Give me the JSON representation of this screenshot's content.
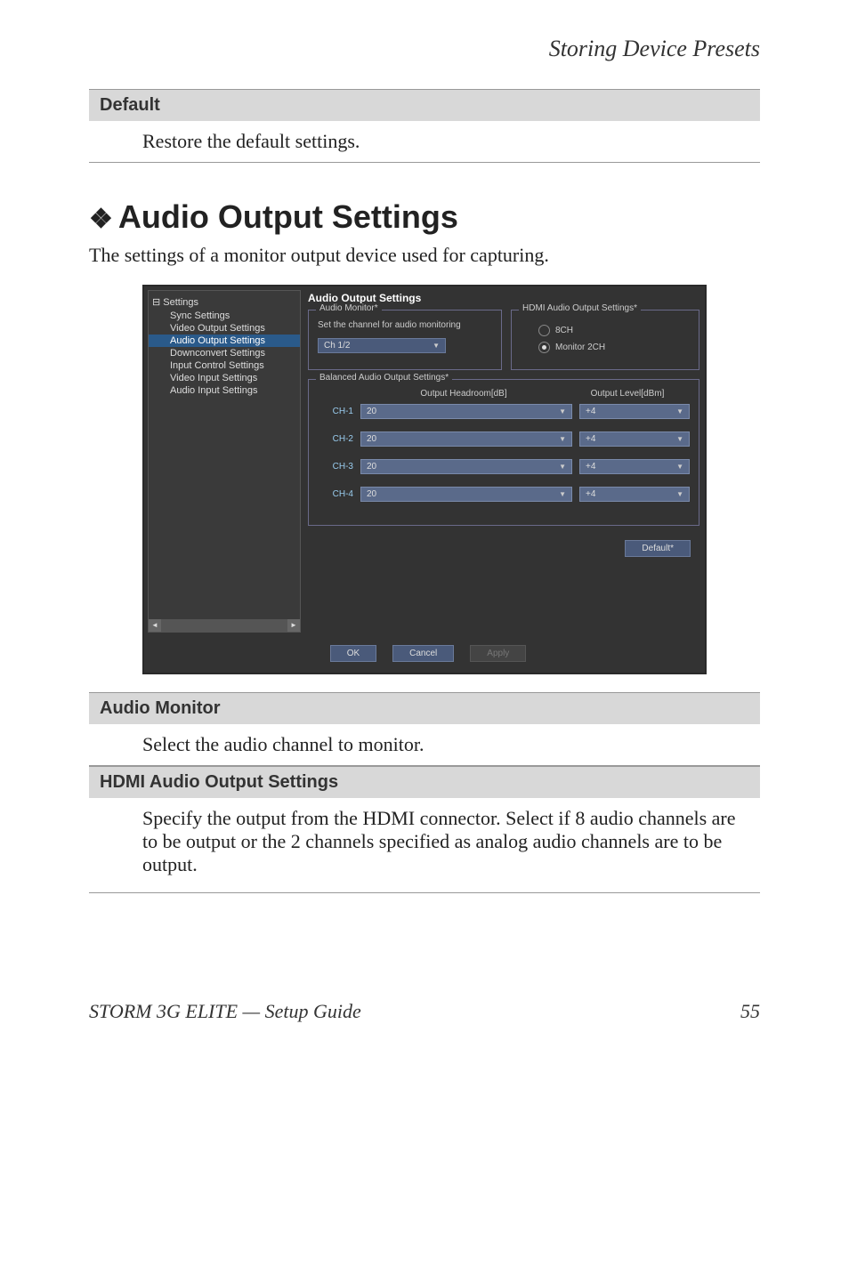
{
  "header": {
    "title": "Storing Device Presets"
  },
  "default_section": {
    "label": "Default",
    "text": "Restore the default settings."
  },
  "main": {
    "heading": "Audio Output Settings",
    "intro": "The settings of a monitor output device used for capturing."
  },
  "dialog": {
    "tree": {
      "root": "⊟ Settings",
      "items": [
        "Sync Settings",
        "Video Output Settings",
        "Audio Output Settings",
        "Downconvert Settings",
        "Input Control Settings",
        "Video Input Settings",
        "Audio Input Settings"
      ],
      "selected_index": 2
    },
    "panel_title": "Audio Output Settings",
    "audio_monitor": {
      "legend": "Audio Monitor*",
      "text": "Set the channel for audio monitoring",
      "value": "Ch 1/2"
    },
    "hdmi": {
      "legend": "HDMI Audio Output Settings*",
      "options": [
        {
          "label": "8CH",
          "selected": false
        },
        {
          "label": "Monitor 2CH",
          "selected": true
        }
      ]
    },
    "balanced": {
      "legend": "Balanced Audio Output Settings*",
      "header_headroom": "Output Headroom[dB]",
      "header_level": "Output Level[dBm]",
      "channels": [
        {
          "label": "CH-1",
          "headroom": "20",
          "level": "+4"
        },
        {
          "label": "CH-2",
          "headroom": "20",
          "level": "+4"
        },
        {
          "label": "CH-3",
          "headroom": "20",
          "level": "+4"
        },
        {
          "label": "CH-4",
          "headroom": "20",
          "level": "+4"
        }
      ]
    },
    "default_btn": "Default*",
    "buttons": {
      "ok": "OK",
      "cancel": "Cancel",
      "apply": "Apply"
    }
  },
  "sections": {
    "audio_monitor": {
      "label": "Audio Monitor",
      "text": "Select the audio channel to monitor."
    },
    "hdmi": {
      "label": "HDMI Audio Output Settings",
      "text": "Specify the output from the HDMI connector. Select if 8 audio channels are to be output or the 2 channels specified as analog audio channels are to be output."
    }
  },
  "footer": {
    "left": "STORM 3G ELITE  —  Setup Guide",
    "page": "55"
  }
}
